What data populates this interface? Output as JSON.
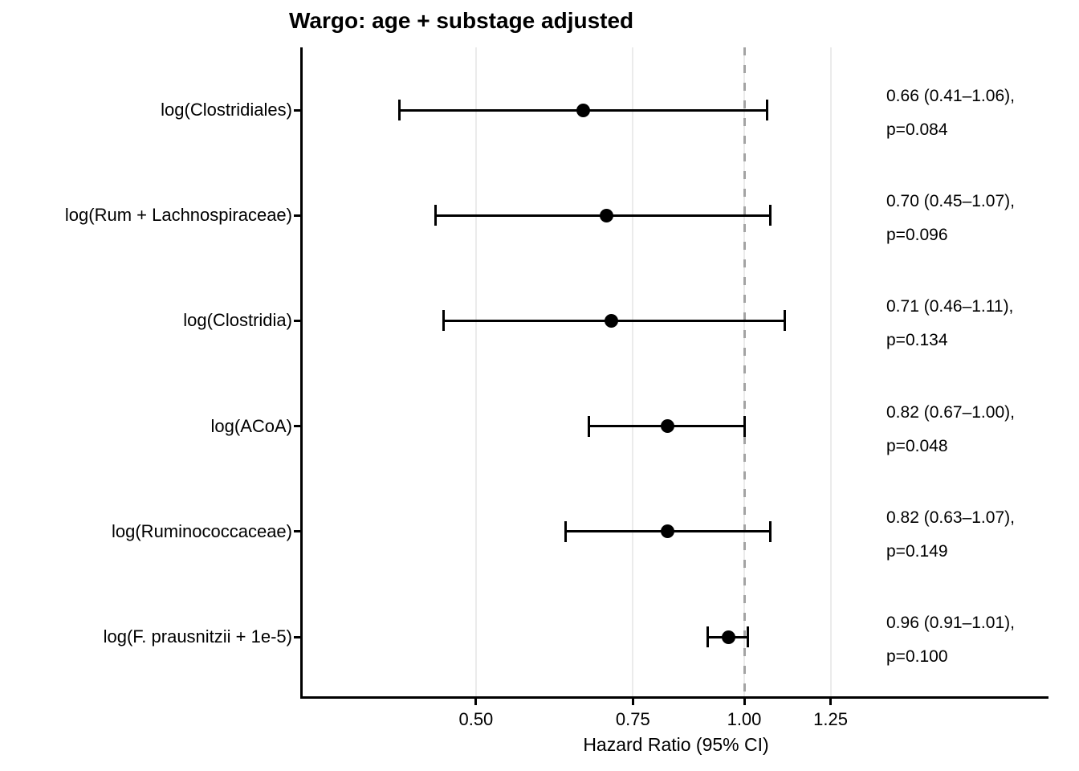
{
  "chart_data": {
    "type": "forest",
    "title": "Wargo: age + substage adjusted",
    "xlabel": "Hazard Ratio (95% CI)",
    "x_scale": "log",
    "reference_line": 1.0,
    "grid": "vertical-major-only",
    "legend": "none",
    "x_ticks": [
      {
        "value": 0.5,
        "label": "0.50"
      },
      {
        "value": 0.75,
        "label": "0.75"
      },
      {
        "value": 1.0,
        "label": "1.00"
      },
      {
        "value": 1.25,
        "label": "1.25"
      }
    ],
    "rows": [
      {
        "label": "log(Clostridiales)",
        "hr": 0.66,
        "ci_low": 0.41,
        "ci_high": 1.06,
        "p": 0.084,
        "estimate_label": "0.66 (0.41–1.06),",
        "p_label": "p=0.084"
      },
      {
        "label": "log(Rum + Lachnospiraceae)",
        "hr": 0.7,
        "ci_low": 0.45,
        "ci_high": 1.07,
        "p": 0.096,
        "estimate_label": "0.70 (0.45–1.07),",
        "p_label": "p=0.096"
      },
      {
        "label": "log(Clostridia)",
        "hr": 0.71,
        "ci_low": 0.46,
        "ci_high": 1.11,
        "p": 0.134,
        "estimate_label": "0.71 (0.46–1.11),",
        "p_label": "p=0.134"
      },
      {
        "label": "log(ACoA)",
        "hr": 0.82,
        "ci_low": 0.67,
        "ci_high": 1.0,
        "p": 0.048,
        "estimate_label": "0.82 (0.67–1.00),",
        "p_label": "p=0.048"
      },
      {
        "label": "log(Ruminococcaceae)",
        "hr": 0.82,
        "ci_low": 0.63,
        "ci_high": 1.07,
        "p": 0.149,
        "estimate_label": "0.82 (0.63–1.07),",
        "p_label": "p=0.149"
      },
      {
        "label": "log(F. prausnitzii + 1e-5)",
        "hr": 0.96,
        "ci_low": 0.91,
        "ci_high": 1.01,
        "p": 0.1,
        "estimate_label": "0.96 (0.91–1.01),",
        "p_label": "p=0.100"
      }
    ],
    "colors": {
      "point": "#000000",
      "ci": "#000000",
      "reference_dashed": "#a3a3a3",
      "gridline": "#ebebeb",
      "text": "#000000",
      "background": "#ffffff"
    }
  }
}
